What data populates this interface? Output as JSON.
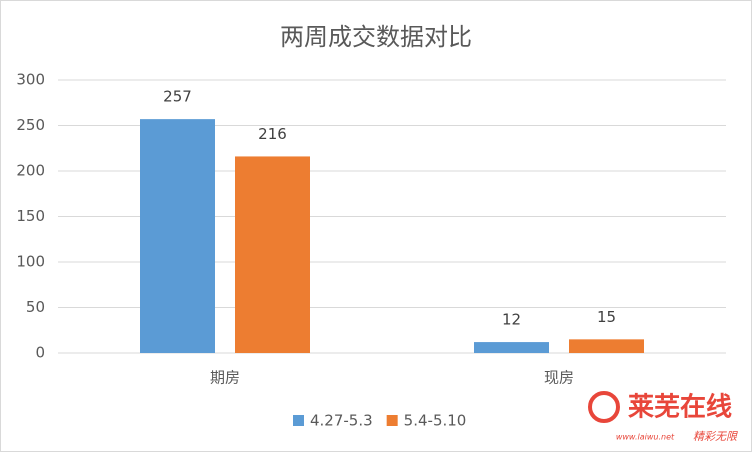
{
  "chart_data": {
    "type": "bar",
    "title": "两周成交数据对比",
    "categories": [
      "期房",
      "现房"
    ],
    "series": [
      {
        "name": "4.27-5.3",
        "color": "#5b9bd5",
        "values": [
          257,
          12
        ]
      },
      {
        "name": "5.4-5.10",
        "color": "#ed7d31",
        "values": [
          216,
          15
        ]
      }
    ],
    "ylim": [
      0,
      300
    ],
    "yticks": [
      0,
      50,
      100,
      150,
      200,
      250,
      300
    ],
    "grid": true,
    "legend": "bottom"
  },
  "watermark": {
    "name": "莱芜在线",
    "url": "www.laiwu.net",
    "slogan": "精彩无限"
  }
}
